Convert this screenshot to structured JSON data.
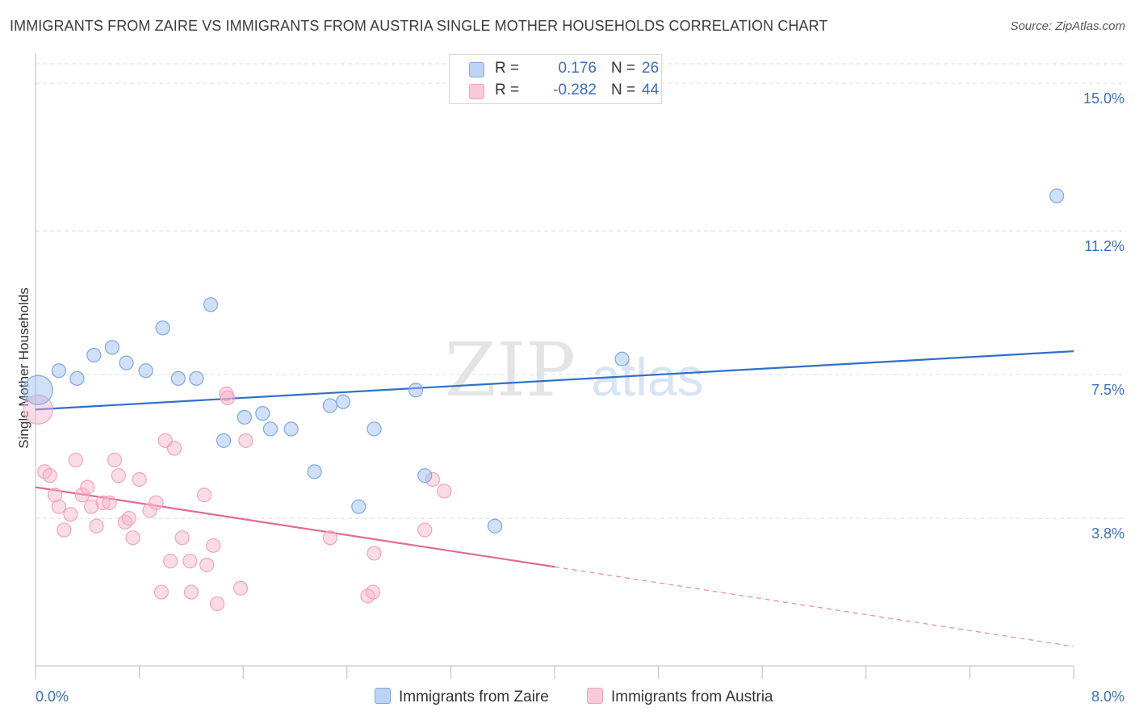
{
  "title": "IMMIGRANTS FROM ZAIRE VS IMMIGRANTS FROM AUSTRIA SINGLE MOTHER HOUSEHOLDS CORRELATION CHART",
  "source": "Source: ZipAtlas.com",
  "watermark": {
    "zip": "ZIP",
    "atlas": "atlas"
  },
  "legend": {
    "rows": [
      {
        "r_label": "R =",
        "r_value": "0.176",
        "n_label": "N =",
        "n_value": "26"
      },
      {
        "r_label": "R =",
        "r_value": "-0.282",
        "n_label": "N =",
        "n_value": "44"
      }
    ]
  },
  "bottom_legend": [
    "Immigrants from Zaire",
    "Immigrants from Austria"
  ],
  "chart_data": {
    "type": "scatter",
    "xlabel": "",
    "ylabel": "Single Mother Households",
    "xlim": [
      0,
      8
    ],
    "ylim": [
      0,
      15.5
    ],
    "x_tick_labels": [
      "0.0%",
      "8.0%"
    ],
    "y_ticks": [
      3.8,
      7.5,
      11.2,
      15.0
    ],
    "y_tick_labels": [
      "3.8%",
      "7.5%",
      "11.2%",
      "15.0%"
    ],
    "grid": true,
    "legend_position": "top-center",
    "colors": {
      "zaire": "#7fa8e6",
      "zaire_line": "#2f6fca",
      "austria": "#f2a3bb",
      "austria_line": "#e06a93",
      "tick_label": "#3b6fc4"
    },
    "series": [
      {
        "name": "Immigrants from Zaire",
        "r": 0.176,
        "n": 26,
        "trend": {
          "x": [
            0.0,
            8.0
          ],
          "y": [
            6.6,
            8.1
          ],
          "dashed_from": null
        },
        "points": [
          {
            "x": 0.02,
            "y": 7.1,
            "big": true
          },
          {
            "x": 0.18,
            "y": 7.6
          },
          {
            "x": 0.32,
            "y": 7.4
          },
          {
            "x": 0.45,
            "y": 8.0
          },
          {
            "x": 0.59,
            "y": 8.2
          },
          {
            "x": 0.7,
            "y": 7.8
          },
          {
            "x": 0.85,
            "y": 7.6
          },
          {
            "x": 0.98,
            "y": 8.7
          },
          {
            "x": 1.1,
            "y": 7.4
          },
          {
            "x": 1.24,
            "y": 7.4
          },
          {
            "x": 1.35,
            "y": 9.3
          },
          {
            "x": 1.45,
            "y": 5.8
          },
          {
            "x": 1.61,
            "y": 6.4
          },
          {
            "x": 1.75,
            "y": 6.5
          },
          {
            "x": 1.81,
            "y": 6.1
          },
          {
            "x": 1.97,
            "y": 6.1
          },
          {
            "x": 2.15,
            "y": 5.0
          },
          {
            "x": 2.27,
            "y": 6.7
          },
          {
            "x": 2.37,
            "y": 6.8
          },
          {
            "x": 2.49,
            "y": 4.1
          },
          {
            "x": 2.61,
            "y": 6.1
          },
          {
            "x": 2.93,
            "y": 7.1
          },
          {
            "x": 3.0,
            "y": 4.9
          },
          {
            "x": 3.54,
            "y": 3.6
          },
          {
            "x": 4.52,
            "y": 7.9
          },
          {
            "x": 7.87,
            "y": 12.1
          }
        ]
      },
      {
        "name": "Immigrants from Austria",
        "r": -0.282,
        "n": 44,
        "trend": {
          "x": [
            0.0,
            8.0
          ],
          "y": [
            4.6,
            0.5
          ],
          "dashed_from": 4.0
        },
        "points": [
          {
            "x": 0.02,
            "y": 6.6,
            "big": true
          },
          {
            "x": 0.07,
            "y": 5.0
          },
          {
            "x": 0.11,
            "y": 4.9
          },
          {
            "x": 0.15,
            "y": 4.4
          },
          {
            "x": 0.18,
            "y": 4.1
          },
          {
            "x": 0.22,
            "y": 3.5
          },
          {
            "x": 0.27,
            "y": 3.9
          },
          {
            "x": 0.31,
            "y": 5.3
          },
          {
            "x": 0.36,
            "y": 4.4
          },
          {
            "x": 0.4,
            "y": 4.6
          },
          {
            "x": 0.43,
            "y": 4.1
          },
          {
            "x": 0.47,
            "y": 3.6
          },
          {
            "x": 0.52,
            "y": 4.2
          },
          {
            "x": 0.57,
            "y": 4.2
          },
          {
            "x": 0.61,
            "y": 5.3
          },
          {
            "x": 0.64,
            "y": 4.9
          },
          {
            "x": 0.69,
            "y": 3.7
          },
          {
            "x": 0.72,
            "y": 3.8
          },
          {
            "x": 0.75,
            "y": 3.3
          },
          {
            "x": 0.8,
            "y": 4.8
          },
          {
            "x": 0.88,
            "y": 4.0
          },
          {
            "x": 0.93,
            "y": 4.2
          },
          {
            "x": 0.97,
            "y": 1.9
          },
          {
            "x": 1.0,
            "y": 5.8
          },
          {
            "x": 1.04,
            "y": 2.7
          },
          {
            "x": 1.07,
            "y": 5.6
          },
          {
            "x": 1.13,
            "y": 3.3
          },
          {
            "x": 1.19,
            "y": 2.7
          },
          {
            "x": 1.2,
            "y": 1.9
          },
          {
            "x": 1.3,
            "y": 4.4
          },
          {
            "x": 1.32,
            "y": 2.6
          },
          {
            "x": 1.37,
            "y": 3.1
          },
          {
            "x": 1.4,
            "y": 1.6
          },
          {
            "x": 1.47,
            "y": 7.0
          },
          {
            "x": 1.48,
            "y": 6.9
          },
          {
            "x": 1.58,
            "y": 2.0
          },
          {
            "x": 1.62,
            "y": 5.8
          },
          {
            "x": 2.27,
            "y": 3.3
          },
          {
            "x": 2.56,
            "y": 1.8
          },
          {
            "x": 2.6,
            "y": 1.9
          },
          {
            "x": 2.61,
            "y": 2.9
          },
          {
            "x": 3.0,
            "y": 3.5
          },
          {
            "x": 3.06,
            "y": 4.8
          },
          {
            "x": 3.15,
            "y": 4.5
          }
        ]
      }
    ]
  }
}
